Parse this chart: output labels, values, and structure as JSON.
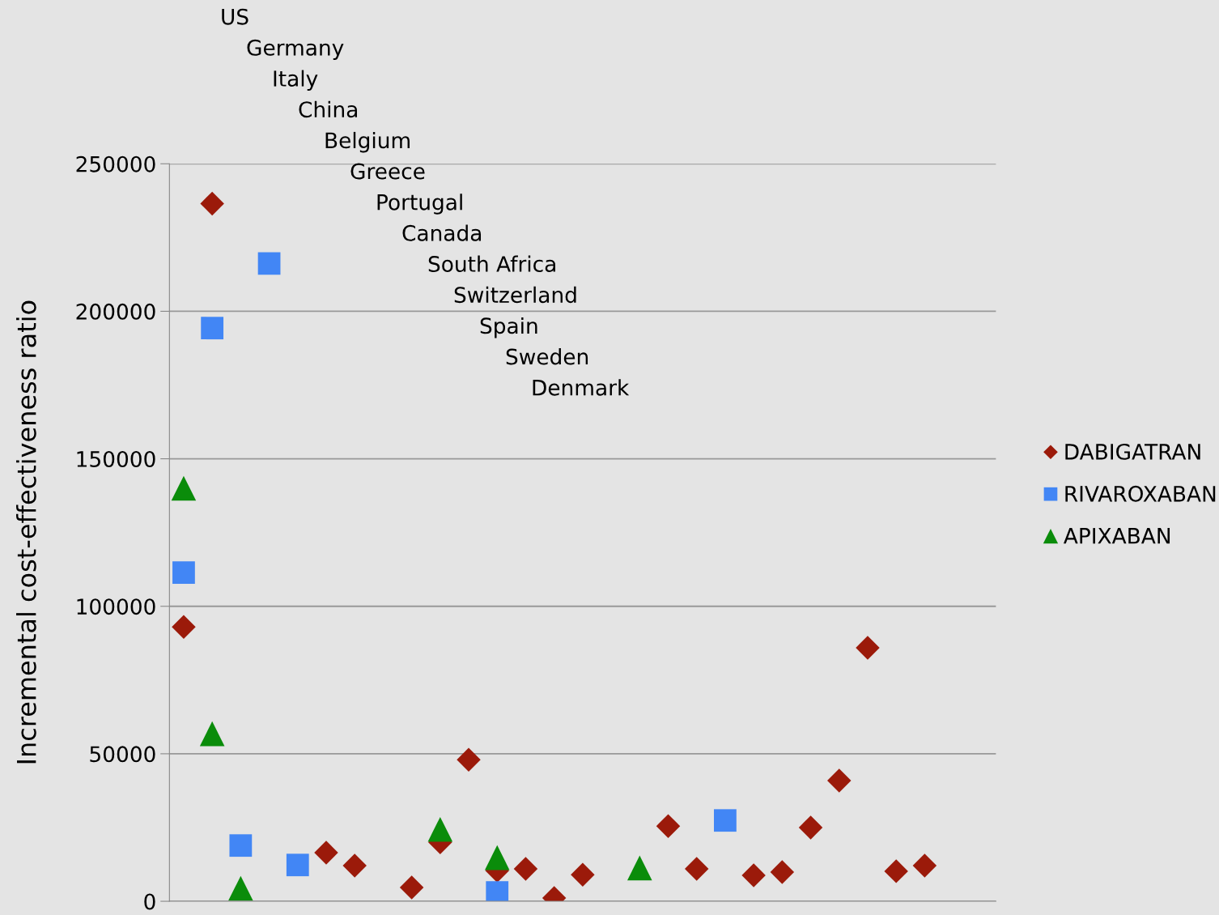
{
  "chart_data": {
    "type": "scatter",
    "ylabel": "Incremental cost-effectiveness ratio",
    "categories": [
      null,
      null,
      null,
      null,
      null,
      null,
      null,
      null,
      null,
      null,
      null,
      null,
      null,
      null,
      null,
      null,
      null,
      null,
      null,
      null,
      null,
      null,
      null,
      null,
      null,
      null,
      null,
      null,
      null
    ],
    "series": [
      {
        "name": "DABIGATRAN",
        "color": "#9b1a0a",
        "marker": "diamond",
        "values": [
          93000,
          236500,
          null,
          null,
          null,
          16500,
          12100,
          null,
          4700,
          20000,
          48000,
          10400,
          11000,
          1100,
          9000,
          null,
          null,
          25500,
          11000,
          null,
          8800,
          9900,
          25000,
          40900,
          85900,
          10200,
          12100,
          null,
          null
        ]
      },
      {
        "name": "RIVAROXABAN",
        "color": "#4286f5",
        "marker": "square",
        "values": [
          111400,
          194300,
          18900,
          216200,
          12300,
          null,
          null,
          null,
          null,
          null,
          null,
          3000,
          null,
          null,
          null,
          null,
          null,
          null,
          null,
          27400,
          null,
          null,
          null,
          null,
          null,
          null,
          null,
          null,
          null
        ]
      },
      {
        "name": "APIXABAN",
        "color": "#0a8c0a",
        "marker": "triangle",
        "values": [
          140000,
          56800,
          4400,
          null,
          null,
          null,
          null,
          null,
          null,
          24400,
          null,
          14800,
          null,
          null,
          null,
          null,
          11300,
          null,
          null,
          null,
          null,
          null,
          null,
          null,
          null,
          null,
          null,
          null,
          null
        ]
      }
    ],
    "ylim": [
      0,
      250000
    ],
    "yticks": [
      0,
      50000,
      100000,
      150000,
      200000,
      250000
    ],
    "grid": "y",
    "legend": "right",
    "tick_labels": "y",
    "annotations": [
      "US",
      "Germany",
      "Italy",
      "China",
      "Belgium",
      "Greece",
      "Portugal",
      "Canada",
      "South Africa",
      "Switzerland",
      "Spain",
      "Sweden",
      "Denmark"
    ]
  }
}
